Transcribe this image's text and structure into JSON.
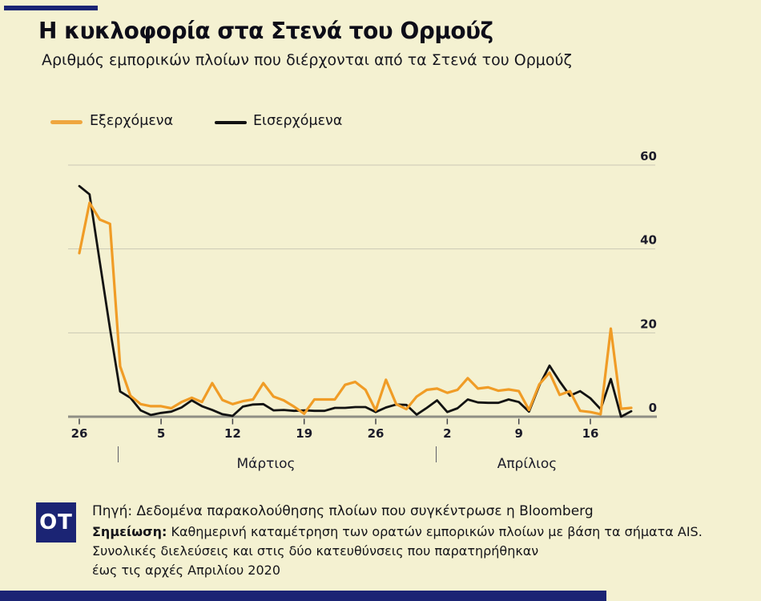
{
  "header": {
    "title": "Η κυκλοφορία στα Στενά του Ορμούζ",
    "subtitle": "Αριθμός εμπορικών πλοίων που διέρχονται από τα Στενά του Ορμούζ"
  },
  "colors": {
    "background": "#F4F1D1",
    "navy": "#1B2474",
    "orange_line": "#F09C26",
    "black_line": "#121212",
    "gridline": "#CBC8B5",
    "axis": "#8F8F85",
    "tick_text": "#1C1C2A"
  },
  "footer": {
    "logo": "OT",
    "source": "Πηγή: Δεδομένα παρακολούθησης πλοίων που συγκέντρωσε η Bloomberg",
    "note_label": "Σημείωση:",
    "note_rest": " Καθημερινή καταμέτρηση των ορατών εμπορικών πλοίων με βάση τα σήματα AIS.",
    "note_line2": "Συνολικές διελεύσεις και στις δύο κατευθύνσεις που παρατηρήθηκαν",
    "note_line3": "έως τις αρχές Απριλίου 2020"
  },
  "chart_data": {
    "type": "line",
    "title": "Η κυκλοφορία στα Στενά του Ορμούζ",
    "ylabel": "",
    "xlabel": "",
    "ylim": [
      0,
      60
    ],
    "y_ticks": [
      0,
      20,
      40,
      60
    ],
    "grid": true,
    "legend_position": "top-left",
    "x_tick_labels": [
      "26",
      "5",
      "12",
      "19",
      "26",
      "2",
      "9",
      "16"
    ],
    "x_tick_day_index": [
      0,
      8,
      15,
      22,
      29,
      36,
      43,
      50
    ],
    "month_labels": [
      "Μάρτιος",
      "Απρίλιος"
    ],
    "dates": [
      "26/2",
      "27/2",
      "28/2",
      "29/2",
      "1/3",
      "2/3",
      "3/3",
      "4/3",
      "5/3",
      "6/3",
      "7/3",
      "8/3",
      "9/3",
      "10/3",
      "11/3",
      "12/3",
      "13/3",
      "14/3",
      "15/3",
      "16/3",
      "17/3",
      "18/3",
      "19/3",
      "20/3",
      "21/3",
      "22/3",
      "23/3",
      "24/3",
      "25/3",
      "26/3",
      "27/3",
      "28/3",
      "29/3",
      "30/3",
      "31/3",
      "1/4",
      "2/4",
      "3/4",
      "4/4",
      "5/4",
      "6/4",
      "7/4",
      "8/4",
      "9/4",
      "10/4",
      "11/4",
      "12/4",
      "13/4",
      "14/4",
      "15/4",
      "16/4",
      "17/4",
      "18/4",
      "19/4",
      "20/4"
    ],
    "series": [
      {
        "name": "Εξερχόμενα",
        "color": "#F09C26",
        "values": [
          39,
          51,
          47,
          46,
          12,
          5,
          3,
          2.5,
          2.5,
          2,
          3.5,
          4.5,
          3.5,
          8,
          4,
          3,
          3.7,
          4.1,
          8,
          4.8,
          3.9,
          2.4,
          0.7,
          4.1,
          4.1,
          4.1,
          7.6,
          8.3,
          6.4,
          1.5,
          8.8,
          3,
          1.8,
          4.8,
          6.4,
          6.7,
          5.7,
          6.4,
          9.2,
          6.7,
          7,
          6.2,
          6.5,
          6.1,
          1.6,
          7.7,
          10.5,
          5.2,
          6.1,
          1.4,
          1.1,
          0.6,
          21,
          1.9,
          2.1
        ]
      },
      {
        "name": "Εισερχόμενα",
        "color": "#121212",
        "values": [
          55,
          53,
          37,
          21,
          6,
          4.5,
          1.5,
          0.4,
          0.9,
          1.2,
          2.2,
          3.9,
          2.5,
          1.6,
          0.6,
          0.2,
          2.4,
          2.9,
          3,
          1.5,
          1.6,
          1.4,
          1.5,
          1.4,
          1.4,
          2.1,
          2.1,
          2.3,
          2.3,
          1.1,
          2.2,
          2.9,
          2.8,
          0.5,
          2.1,
          3.9,
          1.1,
          2,
          4.1,
          3.4,
          3.3,
          3.3,
          4.1,
          3.5,
          1.2,
          7.4,
          12.2,
          8.4,
          5,
          6.1,
          4.4,
          1.8,
          9,
          0,
          1.3
        ]
      }
    ]
  }
}
